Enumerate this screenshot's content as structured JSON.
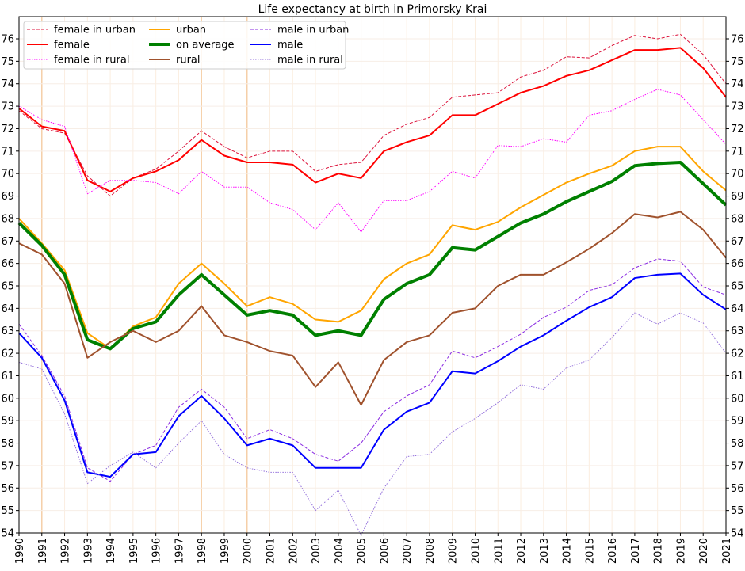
{
  "chart_data": {
    "type": "line",
    "title": "Life expectancy at birth in Primorsky Krai",
    "xlabel": "",
    "ylabel": "",
    "xlim": [
      1990,
      2021
    ],
    "ylim": [
      54,
      77
    ],
    "grid": true,
    "legend_placement": "top-left",
    "x": [
      1990,
      1991,
      1992,
      1993,
      1994,
      1995,
      1996,
      1997,
      1998,
      1999,
      2000,
      2001,
      2002,
      2003,
      2004,
      2005,
      2006,
      2007,
      2008,
      2009,
      2010,
      2011,
      2012,
      2013,
      2014,
      2015,
      2016,
      2017,
      2018,
      2019,
      2020,
      2021
    ],
    "x_tick_labels": [
      "1990",
      "1991",
      "1992",
      "1993",
      "1994",
      "1995",
      "1996",
      "1997",
      "1998",
      "1999",
      "2000",
      "2001",
      "2002",
      "2003",
      "2004",
      "2005",
      "2006",
      "2007",
      "2008",
      "2009",
      "2010",
      "2011",
      "2012",
      "2013",
      "2014",
      "2015",
      "2016",
      "2017",
      "2018",
      "2019",
      "2020",
      "2021"
    ],
    "y_tick_labels": [
      "54",
      "55",
      "56",
      "57",
      "58",
      "59",
      "60",
      "61",
      "62",
      "63",
      "64",
      "65",
      "66",
      "67",
      "68",
      "69",
      "70",
      "71",
      "72",
      "73",
      "74",
      "75",
      "76"
    ],
    "highlight_years": [
      1991,
      1998,
      2000
    ],
    "series": [
      {
        "name": "female in urban",
        "color": "#dc143c",
        "style": "dashed",
        "width": 1,
        "values": [
          72.8,
          72.0,
          71.8,
          69.9,
          69.0,
          69.8,
          70.2,
          71.0,
          71.9,
          71.2,
          70.7,
          71.0,
          71.0,
          70.1,
          70.4,
          70.5,
          71.7,
          72.2,
          72.5,
          73.4,
          73.5,
          73.6,
          74.3,
          74.6,
          75.2,
          75.15,
          75.7,
          76.15,
          76.0,
          76.2,
          75.3,
          74.0
        ]
      },
      {
        "name": "female",
        "color": "#ff0000",
        "style": "solid",
        "width": 2,
        "values": [
          72.9,
          72.1,
          71.9,
          69.7,
          69.2,
          69.8,
          70.1,
          70.6,
          71.5,
          70.8,
          70.5,
          70.5,
          70.4,
          69.6,
          70.0,
          69.8,
          71.0,
          71.4,
          71.7,
          72.6,
          72.6,
          73.1,
          73.6,
          73.9,
          74.35,
          74.6,
          75.05,
          75.5,
          75.5,
          75.6,
          74.7,
          73.4
        ]
      },
      {
        "name": "female in rural",
        "color": "#ff00ff",
        "style": "dotted",
        "width": 1,
        "values": [
          73.0,
          72.4,
          72.1,
          69.1,
          69.7,
          69.7,
          69.6,
          69.1,
          70.1,
          69.4,
          69.4,
          68.7,
          68.4,
          67.5,
          68.7,
          67.4,
          68.8,
          68.8,
          69.2,
          70.1,
          69.8,
          71.25,
          71.2,
          71.55,
          71.4,
          72.6,
          72.8,
          73.3,
          73.75,
          73.5,
          72.4,
          71.3
        ]
      },
      {
        "name": "urban",
        "color": "#ffa500",
        "style": "solid",
        "width": 2,
        "values": [
          68.0,
          66.9,
          65.7,
          62.9,
          62.2,
          63.2,
          63.6,
          65.1,
          66.0,
          65.1,
          64.1,
          64.5,
          64.2,
          63.5,
          63.4,
          63.9,
          65.3,
          66.0,
          66.4,
          67.7,
          67.5,
          67.85,
          68.5,
          69.05,
          69.6,
          70.0,
          70.35,
          71.0,
          71.2,
          71.2,
          70.1,
          69.25
        ]
      },
      {
        "name": "on average",
        "color": "#008000",
        "style": "solid",
        "width": 4,
        "values": [
          67.8,
          66.8,
          65.5,
          62.6,
          62.2,
          63.1,
          63.4,
          64.6,
          65.5,
          64.6,
          63.7,
          63.9,
          63.7,
          62.8,
          63.0,
          62.8,
          64.4,
          65.1,
          65.5,
          66.7,
          66.6,
          67.2,
          67.8,
          68.2,
          68.75,
          69.2,
          69.65,
          70.35,
          70.45,
          70.5,
          69.55,
          68.6
        ]
      },
      {
        "name": "rural",
        "color": "#a0522d",
        "style": "solid",
        "width": 2,
        "values": [
          66.9,
          66.4,
          65.1,
          61.8,
          62.5,
          63.0,
          62.5,
          63.0,
          64.1,
          62.8,
          62.5,
          62.1,
          61.9,
          60.5,
          61.6,
          59.7,
          61.7,
          62.5,
          62.8,
          63.8,
          64.0,
          65.0,
          65.5,
          65.5,
          66.05,
          66.65,
          67.35,
          68.2,
          68.05,
          68.3,
          67.5,
          66.25
        ]
      },
      {
        "name": "male in urban",
        "color": "#8a2be2",
        "style": "dashed",
        "width": 1,
        "values": [
          63.3,
          61.9,
          60.1,
          56.9,
          56.3,
          57.5,
          57.9,
          59.6,
          60.4,
          59.6,
          58.2,
          58.6,
          58.2,
          57.5,
          57.2,
          58.0,
          59.4,
          60.1,
          60.6,
          62.1,
          61.8,
          62.3,
          62.85,
          63.6,
          64.05,
          64.8,
          65.05,
          65.8,
          66.2,
          66.1,
          64.95,
          64.6
        ]
      },
      {
        "name": "male",
        "color": "#0000ff",
        "style": "solid",
        "width": 2,
        "values": [
          62.9,
          61.8,
          59.9,
          56.7,
          56.5,
          57.5,
          57.6,
          59.2,
          60.1,
          59.1,
          57.9,
          58.2,
          57.9,
          56.9,
          56.9,
          56.9,
          58.6,
          59.4,
          59.8,
          61.2,
          61.1,
          61.65,
          62.3,
          62.8,
          63.45,
          64.05,
          64.5,
          65.35,
          65.5,
          65.55,
          64.6,
          63.95
        ]
      },
      {
        "name": "male in rural",
        "color": "#9370db",
        "style": "dotted",
        "width": 1,
        "values": [
          61.6,
          61.3,
          59.3,
          56.2,
          57.0,
          57.6,
          56.9,
          58.0,
          59.0,
          57.5,
          56.9,
          56.7,
          56.7,
          55.0,
          55.9,
          53.9,
          56.0,
          57.4,
          57.5,
          58.5,
          59.1,
          59.8,
          60.6,
          60.4,
          61.35,
          61.7,
          62.7,
          63.8,
          63.3,
          63.8,
          63.35,
          62.0
        ]
      }
    ]
  }
}
